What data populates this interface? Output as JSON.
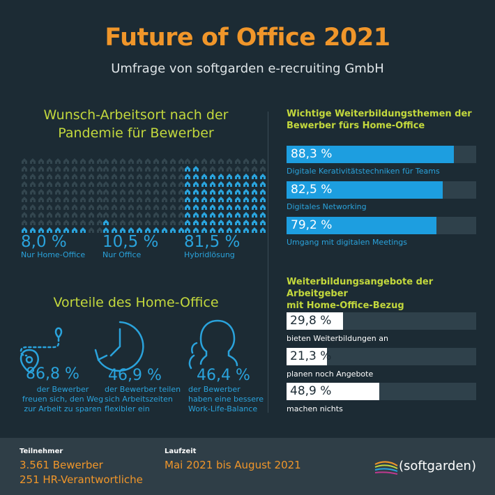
{
  "header": {
    "title": "Future of Office 2021",
    "subtitle": "Umfrage von softgarden e-recruiting GmbH"
  },
  "workplace": {
    "heading_line1": "Wunsch-Arbeitsort nach der",
    "heading_line2": "Pandemie für Bewerber",
    "items": [
      {
        "pct": "8,0 %",
        "label": "Nur Home-Office",
        "value": 8.0
      },
      {
        "pct": "10,5 %",
        "label": "Nur Office",
        "value": 10.5
      },
      {
        "pct": "81,5 %",
        "label": "Hybridlösung",
        "value": 81.5
      }
    ]
  },
  "advantages": {
    "heading": "Vorteile des Home-Office",
    "items": [
      {
        "pct": "86,8 %",
        "line1": "der Bewerber",
        "line2": "freuen sich, den Weg",
        "line3": "zur Arbeit zu sparen",
        "icon": "map-pin-route-icon"
      },
      {
        "pct": "46,9 %",
        "line1": "der Bewerber teilen",
        "line2": "sich Arbeitszeiten",
        "line3": "flexibler ein",
        "icon": "clock-icon"
      },
      {
        "pct": "46,4 %",
        "line1": "der Bewerber",
        "line2": "haben eine bessere",
        "line3": "Work-Life-Balance",
        "icon": "person-head-icon"
      }
    ]
  },
  "training_topics": {
    "heading_line1": "Wichtige Weiterbildungsthemen der",
    "heading_line2": "Bewerber fürs Home-Office",
    "bars": [
      {
        "value": "88,3 %",
        "fraction": 0.883,
        "caption": "Digitale Kerativitätstechniken für Teams"
      },
      {
        "value": "82,5 %",
        "fraction": 0.825,
        "caption": "Digitales Networking"
      },
      {
        "value": "79,2 %",
        "fraction": 0.792,
        "caption": "Umgang mit digitalen Meetings"
      }
    ]
  },
  "employer_offers": {
    "heading_line1": "Weiterbildungsangebote der Arbeitgeber",
    "heading_line2": "mit Home-Office-Bezug",
    "bars": [
      {
        "value": "29,8 %",
        "fraction": 0.298,
        "caption": "bieten Weiterbildungen an"
      },
      {
        "value": "21,3 %",
        "fraction": 0.213,
        "caption": "planen noch Angebote"
      },
      {
        "value": "48,9 %",
        "fraction": 0.489,
        "caption": "machen nichts"
      }
    ]
  },
  "footer": {
    "participants_label": "Teilnehmer",
    "participants_line1": "3.561 Bewerber",
    "participants_line2": "251 HR-Verantwortliche",
    "period_label": "Laufzeit",
    "period_value": "Mai 2021 bis August 2021",
    "logo_text": "softgarden"
  },
  "colors": {
    "background": "#1c2b34",
    "accent_orange": "#f0962a",
    "accent_green": "#c3d83d",
    "accent_blue": "#2aa3dc",
    "icon_dim": "#33464f"
  }
}
